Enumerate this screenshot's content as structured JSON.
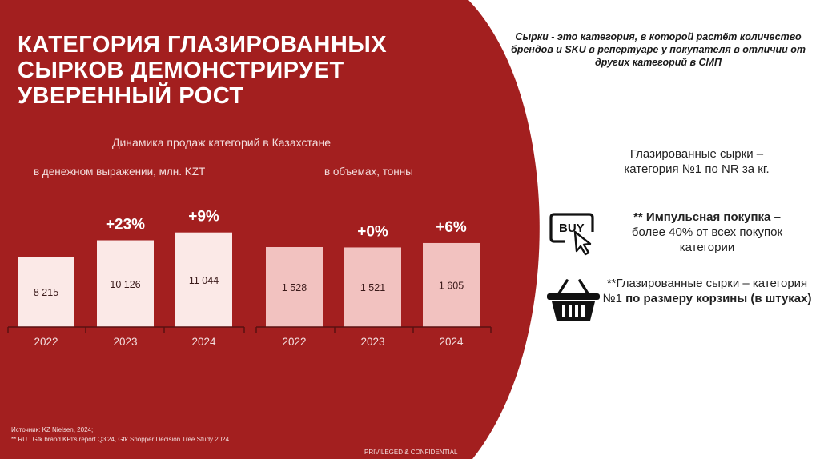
{
  "title_lines": [
    "КАТЕГОРИЯ ГЛАЗИРОВАННЫХ",
    "СЫРКОВ ДЕМОНСТРИРУЕТ",
    "УВЕРЕННЫЙ РОСТ"
  ],
  "chart_title": "Динамика продаж категорий в Казахстане",
  "colors": {
    "brand_red": "#a31f1f",
    "bar_left": "#fbe9e7",
    "bar_right": "#f2c2c0",
    "axis": "#5a1010"
  },
  "chart_data": [
    {
      "type": "bar",
      "title": "в денежном выражении, млн. KZT",
      "categories": [
        "2022",
        "2023",
        "2024"
      ],
      "values": [
        8215,
        10126,
        11044
      ],
      "value_labels": [
        "8 215",
        "10 126",
        "11 044"
      ],
      "growth_labels": [
        "",
        "+23%",
        "+9%"
      ],
      "xlabel": "",
      "ylabel": "",
      "grid": false
    },
    {
      "type": "bar",
      "title": "в объемах, тонны",
      "categories": [
        "2022",
        "2023",
        "2024"
      ],
      "values": [
        1528,
        1521,
        1605
      ],
      "value_labels": [
        "1 528",
        "1 521",
        "1 605"
      ],
      "growth_labels": [
        "",
        "+0%",
        "+6%"
      ],
      "xlabel": "",
      "ylabel": "",
      "grid": false
    }
  ],
  "right": {
    "note": "Сырки - это категория, в которой растёт количество брендов и SKU в репертуаре у покупателя в отличии от других категорий в СМП",
    "fact1_line1": "Глазированные сырки –",
    "fact1_line2": "категория №1 по NR за кг.",
    "buy_icon_text": "BUY",
    "fact2_bold": "** Импульсная покупка –",
    "fact2_rest": "более 40% от всех покупок категории",
    "fact3_plain": "**Глазированные сырки – категория №1 ",
    "fact3_bold": "по размеру корзины (в штуках)"
  },
  "footnotes": {
    "source": "Источник: KZ Nielsen, 2024;",
    "note": "** RU : Gfk brand KPI's report Q3'24, Gfk Shopper Decision Tree Study 2024"
  },
  "confidential": "PRIVILEGED & CONFIDENTIAL"
}
